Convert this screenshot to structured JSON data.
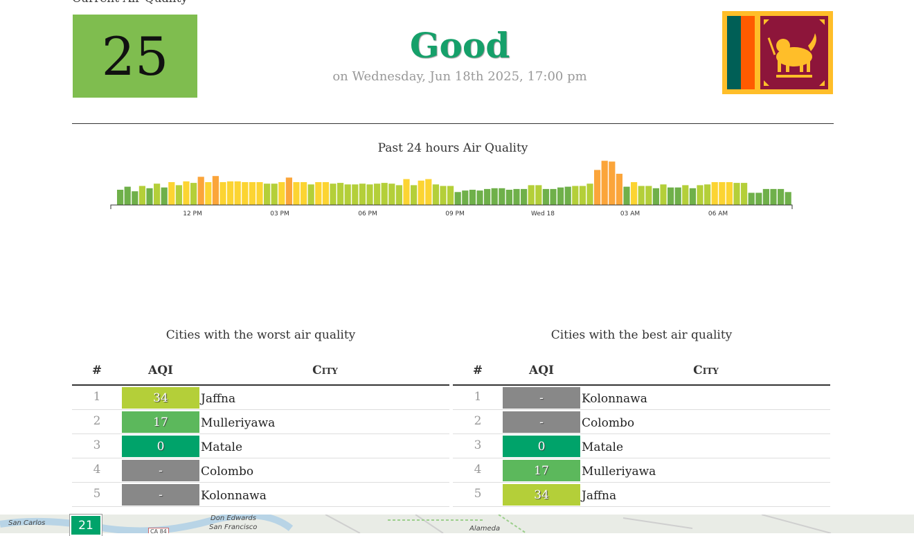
{
  "current": {
    "label": "Current Air Quality",
    "aqi": "25",
    "status": "Good",
    "date": "on Wednesday, Jun 18th 2025, 17:00 pm"
  },
  "colors": {
    "good_dark": "#00a36a",
    "good_light": "#7fbd4f",
    "moderate_green": "#b4cf39",
    "moderate_yellow": "#fcd432",
    "orange": "#fba53a",
    "unknown": "#888888"
  },
  "chart": {
    "title": "Past 24 hours Air Quality"
  },
  "chart_data": {
    "type": "bar",
    "title": "Past 24 hours Air Quality",
    "x_tick_labels": [
      "12 PM",
      "03 PM",
      "06 PM",
      "09 PM",
      "Wed 18",
      "03 AM",
      "06 AM"
    ],
    "values": [
      20,
      24,
      18,
      25,
      22,
      28,
      23,
      30,
      26,
      31,
      29,
      37,
      30,
      38,
      30,
      31,
      31,
      30,
      30,
      30,
      28,
      28,
      30,
      36,
      30,
      30,
      27,
      30,
      30,
      28,
      29,
      27,
      27,
      28,
      27,
      28,
      29,
      28,
      26,
      34,
      26,
      32,
      34,
      27,
      25,
      25,
      17,
      19,
      20,
      19,
      21,
      22,
      22,
      20,
      21,
      21,
      26,
      26,
      21,
      21,
      23,
      24,
      25,
      25,
      28,
      46,
      58,
      57,
      41,
      24,
      30,
      25,
      25,
      22,
      27,
      23,
      23,
      26,
      22,
      26,
      27,
      30,
      30,
      30,
      29,
      29,
      16,
      16,
      21,
      21,
      21,
      17
    ]
  },
  "worst": {
    "title": "Cities with the worst air quality",
    "headers": {
      "num": "#",
      "aqi": "AQI",
      "city": "City"
    },
    "rows": [
      {
        "num": "1",
        "aqi": "34",
        "city": "Jaffna",
        "color": "#b4cf39"
      },
      {
        "num": "2",
        "aqi": "17",
        "city": "Mulleriyawa",
        "color": "#5cb85c"
      },
      {
        "num": "3",
        "aqi": "0",
        "city": "Matale",
        "color": "#00a36a"
      },
      {
        "num": "4",
        "aqi": "-",
        "city": "Colombo",
        "color": "#888888"
      },
      {
        "num": "5",
        "aqi": "-",
        "city": "Kolonnawa",
        "color": "#888888"
      }
    ]
  },
  "best": {
    "title": "Cities with the best air quality",
    "headers": {
      "num": "#",
      "aqi": "AQI",
      "city": "City"
    },
    "rows": [
      {
        "num": "1",
        "aqi": "-",
        "city": "Kolonnawa",
        "color": "#888888"
      },
      {
        "num": "2",
        "aqi": "-",
        "city": "Colombo",
        "color": "#888888"
      },
      {
        "num": "3",
        "aqi": "0",
        "city": "Matale",
        "color": "#00a36a"
      },
      {
        "num": "4",
        "aqi": "17",
        "city": "Mulleriyawa",
        "color": "#5cb85c"
      },
      {
        "num": "5",
        "aqi": "34",
        "city": "Jaffna",
        "color": "#b4cf39"
      }
    ]
  },
  "map": {
    "badge_value": "21",
    "labels": [
      "San Carlos",
      "Don Edwards",
      "San Francisco",
      "Alameda",
      "CA 84"
    ]
  }
}
